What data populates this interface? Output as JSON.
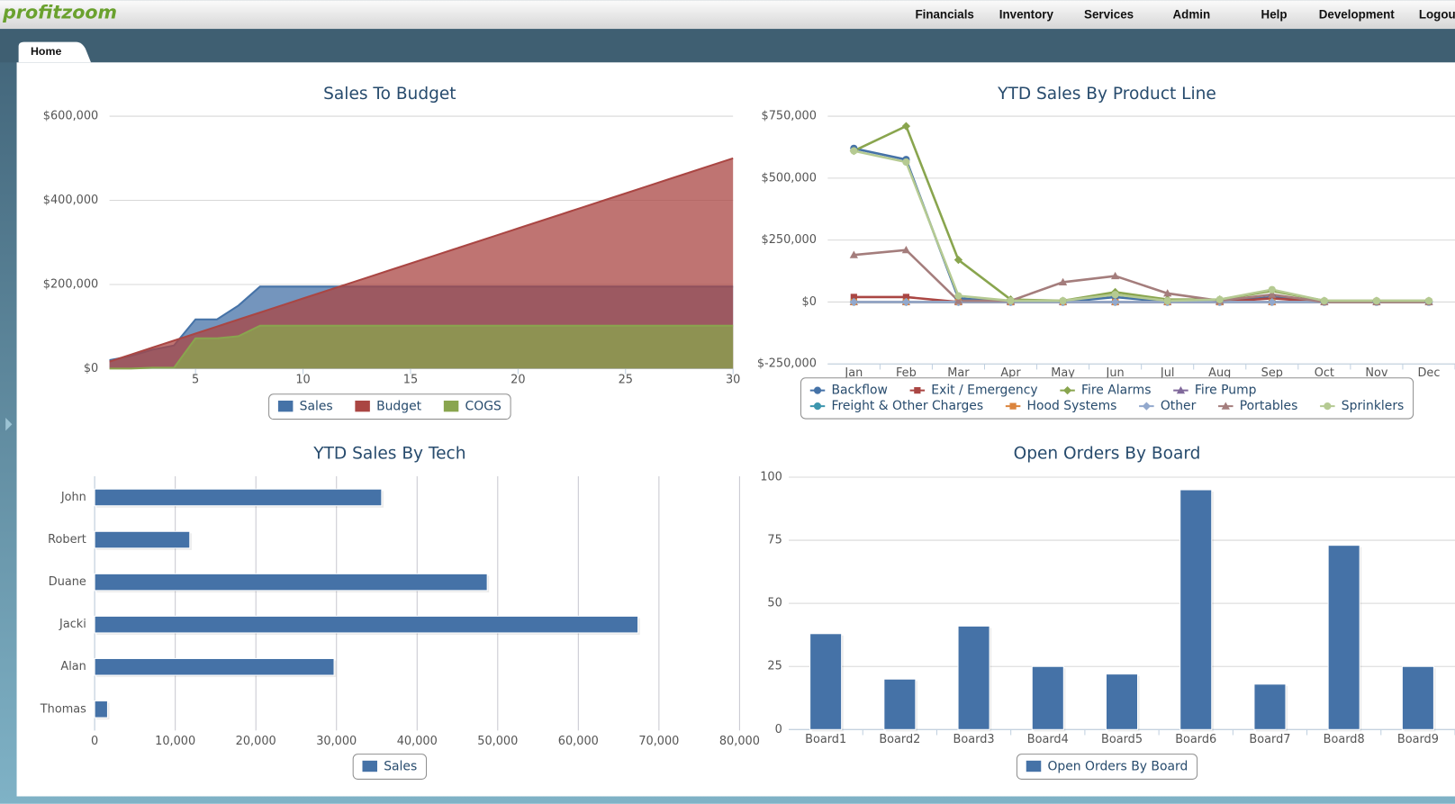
{
  "nav": {
    "logo": "profitzoom",
    "menu": [
      "Financials",
      "Inventory",
      "Services",
      "Admin",
      "Help",
      "Development",
      "Logout"
    ]
  },
  "tabs": [
    "Home"
  ],
  "chart_data": [
    {
      "type": "area",
      "title": "Sales To Budget",
      "x": [
        1,
        2,
        3,
        4,
        5,
        6,
        7,
        8,
        9,
        10,
        11,
        12,
        13,
        14,
        15,
        16,
        17,
        18,
        19,
        20,
        21,
        22,
        23,
        24,
        25,
        26,
        27,
        28,
        29,
        30
      ],
      "xlim": [
        1,
        30
      ],
      "xticks": [
        5,
        10,
        15,
        20,
        25,
        30
      ],
      "ylim": [
        0,
        600000
      ],
      "yticks": [
        {
          "value": 0,
          "label": "$0"
        },
        {
          "value": 200000,
          "label": "$200,000"
        },
        {
          "value": 400000,
          "label": "$400,000"
        },
        {
          "value": 600000,
          "label": "$600,000"
        }
      ],
      "grid": true,
      "series": [
        {
          "name": "Sales",
          "color": "#4572a7",
          "values": [
            20000,
            30000,
            45000,
            55000,
            117000,
            117000,
            150000,
            195000,
            195000,
            195000,
            195000,
            195000,
            195000,
            195000,
            195000,
            195000,
            195000,
            195000,
            195000,
            195000,
            195000,
            195000,
            195000,
            195000,
            195000,
            195000,
            195000,
            195000,
            195000,
            195000
          ]
        },
        {
          "name": "Budget",
          "color": "#aa4643",
          "values": [
            16667,
            33333,
            50000,
            66667,
            83333,
            100000,
            116667,
            133333,
            150000,
            166667,
            183333,
            200000,
            216667,
            233333,
            250000,
            266667,
            283333,
            300000,
            316667,
            333333,
            350000,
            366667,
            383333,
            400000,
            416667,
            433333,
            450000,
            466667,
            483333,
            500000
          ]
        },
        {
          "name": "COGS",
          "color": "#89a54e",
          "values": [
            0,
            0,
            2000,
            2000,
            72000,
            72000,
            77000,
            102000,
            102000,
            102000,
            102000,
            102000,
            102000,
            102000,
            102000,
            102000,
            102000,
            102000,
            102000,
            102000,
            102000,
            102000,
            102000,
            102000,
            102000,
            102000,
            102000,
            102000,
            102000,
            102000
          ]
        }
      ]
    },
    {
      "type": "line",
      "title": "YTD Sales By Product Line",
      "categories": [
        "Jan",
        "Feb",
        "Mar",
        "Apr",
        "May",
        "Jun",
        "Jul",
        "Aug",
        "Sep",
        "Oct",
        "Nov",
        "Dec"
      ],
      "ylim": [
        -250000,
        750000
      ],
      "yticks": [
        {
          "value": -250000,
          "label": "$-250,000"
        },
        {
          "value": 0,
          "label": "$0"
        },
        {
          "value": 250000,
          "label": "$250,000"
        },
        {
          "value": 500000,
          "label": "$500,000"
        },
        {
          "value": 750000,
          "label": "$750,000"
        }
      ],
      "grid": true,
      "series": [
        {
          "name": "Backflow",
          "color": "#4572a7",
          "values": [
            620000,
            575000,
            15000,
            0,
            0,
            20000,
            0,
            0,
            20000,
            0,
            0,
            0
          ]
        },
        {
          "name": "Exit / Emergency",
          "color": "#aa4643",
          "values": [
            20000,
            20000,
            0,
            0,
            0,
            0,
            0,
            0,
            15000,
            0,
            0,
            0
          ]
        },
        {
          "name": "Fire Alarms",
          "color": "#89a54e",
          "values": [
            610000,
            710000,
            170000,
            10000,
            5000,
            40000,
            10000,
            10000,
            45000,
            5000,
            5000,
            5000
          ]
        },
        {
          "name": "Fire Pump",
          "color": "#80699b",
          "values": [
            0,
            0,
            0,
            0,
            0,
            0,
            0,
            0,
            0,
            0,
            0,
            0
          ]
        },
        {
          "name": "Freight & Other Charges",
          "color": "#3d96ae",
          "values": [
            0,
            0,
            0,
            0,
            0,
            0,
            0,
            0,
            0,
            0,
            0,
            0
          ]
        },
        {
          "name": "Hood Systems",
          "color": "#db843d",
          "values": [
            0,
            0,
            0,
            0,
            0,
            0,
            0,
            0,
            0,
            0,
            0,
            0
          ]
        },
        {
          "name": "Other",
          "color": "#92a8cd",
          "values": [
            0,
            0,
            0,
            0,
            0,
            0,
            0,
            0,
            0,
            0,
            0,
            0
          ]
        },
        {
          "name": "Portables",
          "color": "#a47d7c",
          "values": [
            190000,
            210000,
            5000,
            5000,
            80000,
            105000,
            35000,
            5000,
            30000,
            0,
            0,
            0
          ]
        },
        {
          "name": "Sprinklers",
          "color": "#b5ca92",
          "values": [
            610000,
            565000,
            25000,
            5000,
            5000,
            30000,
            5000,
            10000,
            50000,
            5000,
            5000,
            5000
          ]
        }
      ]
    },
    {
      "type": "bar",
      "orientation": "horizontal",
      "title": "YTD Sales By Tech",
      "categories": [
        "John",
        "Robert",
        "Duane",
        "Jacki",
        "Alan",
        "Thomas"
      ],
      "xlim": [
        0,
        80000
      ],
      "xticks": [
        0,
        {
          "value": 10000,
          "label": "10,000"
        },
        {
          "value": 20000,
          "label": "20,000"
        },
        {
          "value": 30000,
          "label": "30,000"
        },
        {
          "value": 40000,
          "label": "40,000"
        },
        {
          "value": 50000,
          "label": "50,000"
        },
        {
          "value": 60000,
          "label": "60,000"
        },
        {
          "value": 70000,
          "label": "70,000"
        },
        {
          "value": 80000,
          "label": "80,000"
        }
      ],
      "grid": true,
      "series": [
        {
          "name": "Sales",
          "color": "#4572a7",
          "values": [
            35600,
            11800,
            48700,
            67400,
            29700,
            1600
          ]
        }
      ]
    },
    {
      "type": "bar",
      "title": "Open Orders By Board",
      "categories": [
        "Board1",
        "Board2",
        "Board3",
        "Board4",
        "Board5",
        "Board6",
        "Board7",
        "Board8",
        "Board9"
      ],
      "ylim": [
        0,
        100
      ],
      "yticks": [
        0,
        25,
        50,
        75,
        100
      ],
      "grid": true,
      "series": [
        {
          "name": "Open Orders By Board",
          "color": "#4572a7",
          "values": [
            38,
            20,
            41,
            25,
            22,
            95,
            18,
            73,
            25
          ]
        }
      ]
    }
  ]
}
